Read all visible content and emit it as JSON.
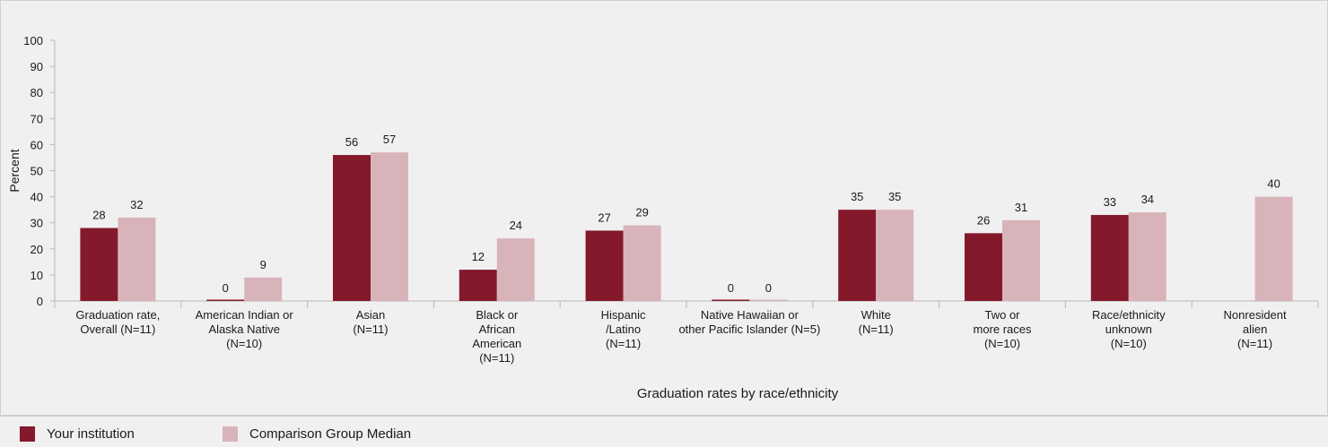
{
  "chart_data": {
    "type": "bar",
    "title": "",
    "xlabel": "Graduation rates by race/ethnicity",
    "ylabel": "Percent",
    "ylim": [
      0,
      100
    ],
    "yticks": [
      0,
      10,
      20,
      30,
      40,
      50,
      60,
      70,
      80,
      90,
      100
    ],
    "grid": false,
    "legend_position": "bottom",
    "categories": [
      [
        "Graduation rate,",
        "Overall (N=11)"
      ],
      [
        "American Indian or",
        "Alaska Native",
        "(N=10)"
      ],
      [
        "Asian",
        "(N=11)"
      ],
      [
        "Black or",
        "African",
        "American",
        "(N=11)"
      ],
      [
        "Hispanic",
        "/Latino",
        "(N=11)"
      ],
      [
        "Native Hawaiian or",
        "other Pacific Islander (N=5)"
      ],
      [
        "White",
        "(N=11)"
      ],
      [
        "Two or",
        "more races",
        "(N=10)"
      ],
      [
        "Race/ethnicity",
        "unknown",
        "(N=10)"
      ],
      [
        "Nonresident",
        "alien",
        "(N=11)"
      ]
    ],
    "series": [
      {
        "name": "Your institution",
        "color": "#84192c",
        "values": [
          28,
          0,
          56,
          12,
          27,
          0,
          35,
          26,
          33,
          null
        ],
        "labels": [
          "28",
          "0",
          "56",
          "12",
          "27",
          "0",
          "35",
          "26",
          "33",
          ""
        ]
      },
      {
        "name": "Comparison Group Median",
        "color": "#d9b3ba",
        "values": [
          32,
          9,
          57,
          24,
          29,
          0,
          35,
          31,
          34,
          40
        ],
        "labels": [
          "32",
          "9",
          "57",
          "24",
          "29",
          "0",
          "35",
          "31",
          "34",
          "40"
        ]
      }
    ]
  }
}
